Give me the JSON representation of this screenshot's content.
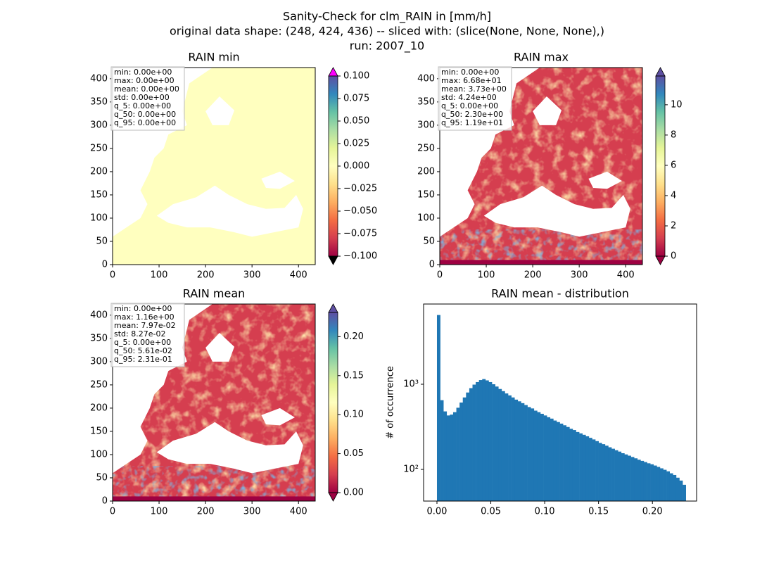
{
  "figure_title": [
    "Sanity-Check for clm_RAIN in [mm/h]",
    "original data shape: (248, 424, 436) -- sliced with: (slice(None, None, None),)",
    "run: 2007_10"
  ],
  "chart_data": [
    {
      "type": "image",
      "title": "RAIN min",
      "stats": [
        "min: 0.00e+00",
        "max: 0.00e+00",
        "mean: 0.00e+00",
        "std: 0.00e+00",
        "q_5: 0.00e+00",
        "q_50: 0.00e+00",
        "q_95: 0.00e+00"
      ],
      "xlim": [
        0,
        436
      ],
      "ylim": [
        0,
        424
      ],
      "xticks": [
        0,
        100,
        200,
        300,
        400
      ],
      "yticks": [
        0,
        50,
        100,
        150,
        200,
        250,
        300,
        350,
        400
      ],
      "colormap": [
        "#9e0142",
        "#d53e4f",
        "#f46d43",
        "#fdae61",
        "#fee08b",
        "#ffffbf",
        "#e6f598",
        "#abdda4",
        "#66c2a5",
        "#3288bd",
        "#5e4fa2"
      ],
      "under_color": "#000000",
      "over_color": "#ff00ff",
      "clim": [
        -0.1,
        0.1
      ],
      "cticks": [
        {
          "value": -0.1,
          "label": "−0.100"
        },
        {
          "value": -0.075,
          "label": "−0.075"
        },
        {
          "value": -0.05,
          "label": "−0.050"
        },
        {
          "value": -0.025,
          "label": "−0.025"
        },
        {
          "value": 0,
          "label": "0.000"
        },
        {
          "value": 0.025,
          "label": "0.025"
        },
        {
          "value": 0.05,
          "label": "0.050"
        },
        {
          "value": 0.075,
          "label": "0.075"
        },
        {
          "value": 0.1,
          "label": "0.100"
        }
      ]
    },
    {
      "type": "image",
      "title": "RAIN max",
      "stats": [
        "min: 0.00e+00",
        "max: 6.68e+01",
        "mean: 3.73e+00",
        "std: 4.24e+00",
        "q_5: 0.00e+00",
        "q_50: 2.30e+00",
        "q_95: 1.19e+01"
      ],
      "xlim": [
        0,
        436
      ],
      "ylim": [
        0,
        424
      ],
      "xticks": [
        0,
        100,
        200,
        300,
        400
      ],
      "yticks": [
        0,
        50,
        100,
        150,
        200,
        250,
        300,
        350,
        400
      ],
      "colormap": [
        "#9e0142",
        "#d53e4f",
        "#f46d43",
        "#fdae61",
        "#fee08b",
        "#ffffbf",
        "#e6f598",
        "#abdda4",
        "#66c2a5",
        "#3288bd",
        "#5e4fa2"
      ],
      "under_color": "#9e0142",
      "over_color": "#5e4fa2",
      "clim": [
        0,
        11.9
      ],
      "cticks": [
        0,
        2,
        4,
        6,
        8,
        10
      ]
    },
    {
      "type": "image",
      "title": "RAIN mean",
      "stats": [
        "min: 0.00e+00",
        "max: 1.16e+00",
        "mean: 7.97e-02",
        "std: 8.27e-02",
        "q_5: 0.00e+00",
        "q_50: 5.61e-02",
        "q_95: 2.31e-01"
      ],
      "xlim": [
        0,
        436
      ],
      "ylim": [
        0,
        424
      ],
      "xticks": [
        0,
        100,
        200,
        300,
        400
      ],
      "yticks": [
        0,
        50,
        100,
        150,
        200,
        250,
        300,
        350,
        400
      ],
      "colormap": [
        "#9e0142",
        "#d53e4f",
        "#f46d43",
        "#fdae61",
        "#fee08b",
        "#ffffbf",
        "#e6f598",
        "#abdda4",
        "#66c2a5",
        "#3288bd",
        "#5e4fa2"
      ],
      "under_color": "#9e0142",
      "over_color": "#5e4fa2",
      "clim": [
        0,
        0.231
      ],
      "cticks": [
        {
          "value": 0,
          "label": "0.00"
        },
        {
          "value": 0.05,
          "label": "0.05"
        },
        {
          "value": 0.1,
          "label": "0.10"
        },
        {
          "value": 0.15,
          "label": "0.15"
        },
        {
          "value": 0.2,
          "label": "0.20"
        }
      ]
    },
    {
      "type": "histogram",
      "title": "RAIN mean - distribution",
      "ylabel": "# of occurrence",
      "color": "#1f77b4",
      "log_y": true,
      "bins": [
        0,
        0.003,
        0.006,
        0.009,
        0.012,
        0.015,
        0.018,
        0.021,
        0.024,
        0.027,
        0.03,
        0.033,
        0.036,
        0.039,
        0.042,
        0.045,
        0.048,
        0.051,
        0.054,
        0.057,
        0.06,
        0.063,
        0.066,
        0.069,
        0.072,
        0.075,
        0.078,
        0.081,
        0.084,
        0.087,
        0.09,
        0.093,
        0.096,
        0.099,
        0.102,
        0.105,
        0.108,
        0.111,
        0.114,
        0.117,
        0.12,
        0.123,
        0.126,
        0.129,
        0.132,
        0.135,
        0.138,
        0.141,
        0.144,
        0.147,
        0.15,
        0.153,
        0.156,
        0.159,
        0.162,
        0.165,
        0.168,
        0.171,
        0.174,
        0.177,
        0.18,
        0.183,
        0.186,
        0.189,
        0.192,
        0.195,
        0.198,
        0.201,
        0.204,
        0.207,
        0.21,
        0.213,
        0.216,
        0.219,
        0.222,
        0.225,
        0.228,
        0.231
      ],
      "values": [
        6500,
        650,
        480,
        430,
        440,
        470,
        530,
        610,
        700,
        800,
        900,
        990,
        1060,
        1120,
        1150,
        1110,
        1060,
        1000,
        940,
        880,
        830,
        780,
        740,
        700,
        660,
        630,
        600,
        570,
        540,
        520,
        490,
        470,
        450,
        430,
        410,
        395,
        375,
        360,
        345,
        330,
        315,
        300,
        290,
        275,
        265,
        255,
        245,
        235,
        225,
        215,
        205,
        198,
        190,
        182,
        175,
        168,
        162,
        155,
        150,
        145,
        140,
        135,
        130,
        126,
        122,
        118,
        115,
        111,
        107,
        103,
        99,
        95,
        90,
        86,
        80,
        74,
        66
      ],
      "xlim": [
        -0.0124,
        0.241
      ],
      "ylim": [
        42.5,
        8750
      ],
      "xticks": [
        {
          "value": 0,
          "label": "0.00"
        },
        {
          "value": 0.05,
          "label": "0.05"
        },
        {
          "value": 0.1,
          "label": "0.10"
        },
        {
          "value": 0.15,
          "label": "0.15"
        },
        {
          "value": 0.2,
          "label": "0.20"
        }
      ],
      "yticks": [
        {
          "value": 100,
          "label": "10²"
        },
        {
          "value": 1000,
          "label": "10³"
        }
      ]
    }
  ]
}
